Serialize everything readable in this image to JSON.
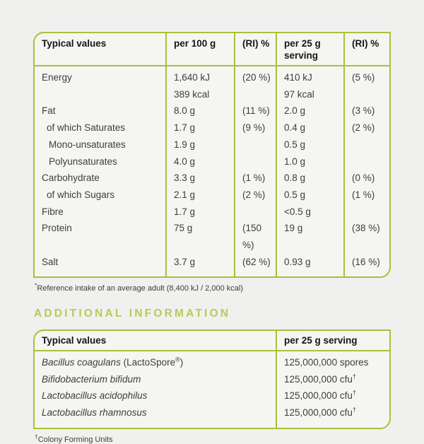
{
  "colors": {
    "border_green": "#a6c23b",
    "heading_green": "#b8ca5a",
    "text": "#3d3d3d",
    "background": "#f0f0ee"
  },
  "table1": {
    "headers": [
      "Typical values",
      "per 100 g",
      "(RI) %",
      "per 25 g serving",
      "(RI) %"
    ],
    "rows": [
      {
        "label": "Energy",
        "per100": "1,640 kJ",
        "per100_b": "389 kcal",
        "ri100": "(20 %)",
        "per25": "410 kJ",
        "per25_b": "97 kcal",
        "ri25": "(5 %)"
      },
      {
        "label": "Fat",
        "per100": "8.0 g",
        "ri100": "(11 %)",
        "per25": "2.0 g",
        "ri25": "(3 %)"
      },
      {
        "label": "of which Saturates",
        "per100": "1.7 g",
        "ri100": "(9 %)",
        "per25": "0.4 g",
        "ri25": "(2 %)"
      },
      {
        "label": "Mono-unsaturates",
        "per100": "1.9 g",
        "ri100": "",
        "per25": "0.5 g",
        "ri25": ""
      },
      {
        "label": "Polyunsaturates",
        "per100": "4.0 g",
        "ri100": "",
        "per25": "1.0 g",
        "ri25": ""
      },
      {
        "label": "Carbohydrate",
        "per100": "3.3 g",
        "ri100": "(1 %)",
        "per25": "0.8 g",
        "ri25": "(0 %)"
      },
      {
        "label": "of which Sugars",
        "per100": "2.1 g",
        "ri100": "(2 %)",
        "per25": "0.5 g",
        "ri25": "(1 %)"
      },
      {
        "label": "Fibre",
        "per100": "1.7 g",
        "ri100": "",
        "per25": "<0.5 g",
        "ri25": ""
      },
      {
        "label": "Protein",
        "per100": "75 g",
        "ri100": "(150 %)",
        "per25": "19 g",
        "ri25": "(38 %)"
      },
      {
        "label": "Salt",
        "per100": "3.7 g",
        "ri100": "(62 %)",
        "per25": "0.93 g",
        "ri25": "(16 %)"
      }
    ]
  },
  "footnote1": {
    "sup": "*",
    "text": "Reference intake of an average adult (8,400 kJ / 2,000 kcal)"
  },
  "additional": {
    "heading": "ADDITIONAL INFORMATION"
  },
  "table2": {
    "headers": [
      "Typical values",
      "per 25 g serving"
    ],
    "rows": [
      {
        "name": "Bacillus coagulans",
        "note_pre": "(LactoSpore",
        "note_sup": "®",
        "note_post": ")",
        "value": "125,000,000 spores",
        "sup": ""
      },
      {
        "name": "Bifidobacterium bifidum",
        "note_pre": "",
        "note_sup": "",
        "note_post": "",
        "value": "125,000,000 cfu",
        "sup": "†"
      },
      {
        "name": "Lactobacillus acidophilus",
        "note_pre": "",
        "note_sup": "",
        "note_post": "",
        "value": "125,000,000 cfu",
        "sup": "†"
      },
      {
        "name": "Lactobacillus rhamnosus",
        "note_pre": "",
        "note_sup": "",
        "note_post": "",
        "value": "125,000,000 cfu",
        "sup": "†"
      }
    ]
  },
  "footnote2": {
    "sup": "†",
    "text": "Colony Forming Units"
  }
}
